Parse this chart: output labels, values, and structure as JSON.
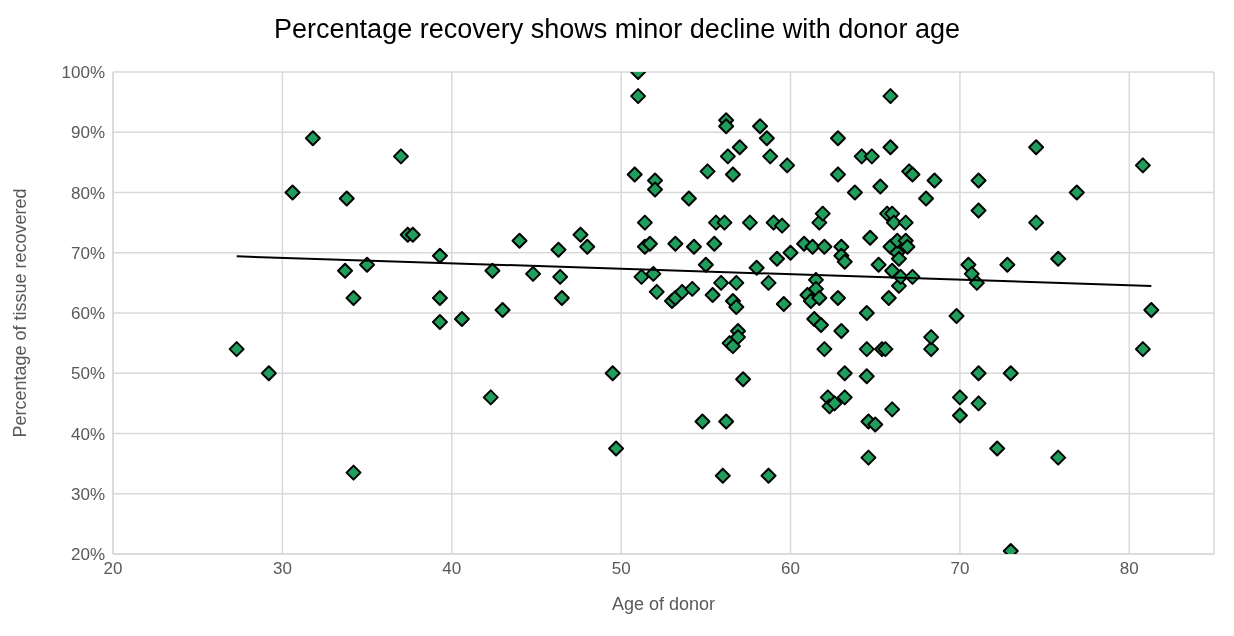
{
  "chart_data": {
    "type": "scatter",
    "title": "Percentage recovery shows minor decline with donor age",
    "xlabel": "Age of donor",
    "ylabel": "Percentage of tissue recovered",
    "xlim": [
      20,
      85
    ],
    "xticks": [
      20,
      30,
      40,
      50,
      60,
      70,
      80
    ],
    "ylim": [
      20,
      100
    ],
    "yticks": [
      {
        "value": 20,
        "label": "20%"
      },
      {
        "value": 30,
        "label": "30%"
      },
      {
        "value": 40,
        "label": "40%"
      },
      {
        "value": 50,
        "label": "50%"
      },
      {
        "value": 60,
        "label": "60%"
      },
      {
        "value": 70,
        "label": "70%"
      },
      {
        "value": 80,
        "label": "80%"
      },
      {
        "value": 90,
        "label": "90%"
      },
      {
        "value": 100,
        "label": "100%"
      }
    ],
    "grid": true,
    "marker": "diamond",
    "series": [
      {
        "color": "#1f9e5c",
        "x": [
          27.3,
          29.2,
          30.6,
          31.8,
          33.7,
          33.8,
          34.2,
          34.2,
          35,
          37,
          37.4,
          37.7,
          39.3,
          39.3,
          39.3,
          40.6,
          42.3,
          42.4,
          43,
          44,
          44.8,
          46.3,
          46.4,
          46.5,
          47.6,
          48,
          49.5,
          49.7,
          50.8,
          51,
          51,
          51.2,
          51.4,
          51.4,
          51.7,
          51.9,
          52,
          52,
          52.1,
          53,
          53.2,
          53.2,
          53.6,
          54,
          54.2,
          54.3,
          54.8,
          55,
          55.1,
          55.4,
          55.5,
          55.6,
          55.9,
          56,
          56.1,
          56.2,
          56.2,
          56.2,
          56.3,
          56.4,
          56.6,
          56.6,
          56.6,
          56.8,
          56.8,
          56.9,
          56.9,
          57,
          57.2,
          57.6,
          58,
          58.2,
          58.6,
          58.7,
          58.7,
          58.8,
          59,
          59.2,
          59.5,
          59.6,
          59.8,
          60,
          60.8,
          61,
          61.2,
          61.3,
          61.4,
          61.5,
          61.5,
          61.7,
          61.7,
          61.8,
          61.9,
          62,
          62,
          62.2,
          62.3,
          62.6,
          62.8,
          62.8,
          62.8,
          63,
          63,
          63,
          63.2,
          63.2,
          63.2,
          63.8,
          64.2,
          64.5,
          64.5,
          64.5,
          64.6,
          64.6,
          64.7,
          64.8,
          65,
          65.2,
          65.3,
          65.4,
          65.6,
          65.7,
          65.8,
          65.9,
          65.9,
          65.9,
          66,
          66,
          66,
          66.1,
          66.3,
          66.3,
          66.4,
          66.4,
          66.5,
          66.8,
          66.8,
          66.9,
          67,
          67.2,
          67.2,
          68,
          68.3,
          68.3,
          68.5,
          69.8,
          70,
          70,
          70.5,
          70.7,
          71,
          71.1,
          71.1,
          71.1,
          71.1,
          72.2,
          72.8,
          73,
          73,
          74.5,
          74.5,
          75.8,
          75.8,
          76.9,
          80.8,
          80.8,
          81.3
        ],
        "values": [
          54,
          50,
          80,
          89,
          67,
          79,
          62.5,
          33.5,
          68,
          86,
          73,
          73,
          69.5,
          62.5,
          58.5,
          59,
          46,
          67,
          60.5,
          72,
          66.5,
          70.5,
          66,
          62.5,
          73,
          71,
          50,
          37.5,
          83,
          100,
          96,
          66,
          75,
          71,
          71.5,
          66.5,
          82,
          80.5,
          63.5,
          62,
          71.5,
          62.5,
          63.5,
          79,
          64,
          71,
          42,
          68,
          83.5,
          63,
          71.5,
          75,
          65,
          33,
          75,
          92,
          91,
          42,
          86,
          55,
          54.5,
          62,
          83,
          65,
          61,
          57,
          56,
          87.5,
          49,
          75,
          67.5,
          91,
          89,
          65,
          33,
          86,
          75,
          69,
          74.5,
          61.5,
          84.5,
          70,
          71.5,
          63,
          62,
          71,
          59,
          65.5,
          64,
          62.5,
          75,
          58,
          76.5,
          54,
          71,
          46,
          44.5,
          45,
          62.5,
          83,
          89,
          57,
          71,
          69.5,
          68.5,
          46,
          50,
          80,
          86,
          60,
          54,
          49.5,
          42,
          36,
          72.5,
          86,
          41.5,
          68,
          81,
          54,
          54,
          76.5,
          62.5,
          71,
          96,
          87.5,
          76.5,
          67,
          44,
          75,
          70,
          72,
          69,
          64.5,
          66,
          72,
          75,
          71,
          83.5,
          83,
          66,
          79,
          54,
          56,
          82,
          59.5,
          46,
          43,
          68,
          66.5,
          65,
          82,
          77,
          50,
          45,
          37.5,
          68,
          50,
          20.5,
          75,
          87.5,
          69,
          36,
          80,
          84.5,
          54,
          60.5
        ]
      },
      {
        "type": "line",
        "color": "#000000",
        "marker": "none",
        "x": [
          27.3,
          81.3
        ],
        "values": [
          69.4,
          64.5
        ]
      }
    ]
  }
}
